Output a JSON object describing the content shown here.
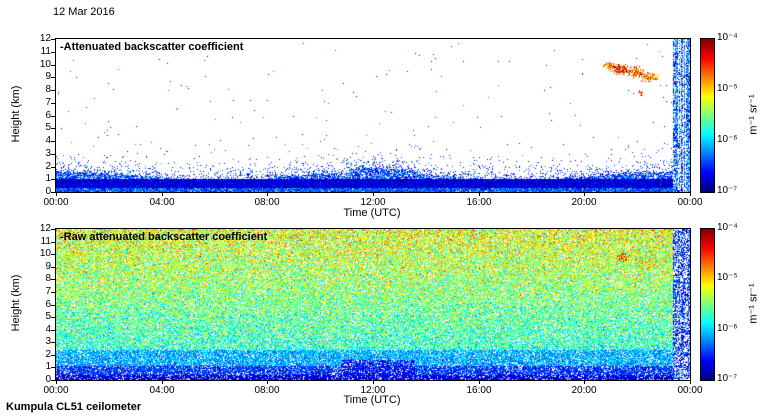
{
  "figure": {
    "date_label": "12 Mar 2016",
    "footer": "Kumpula CL51 ceilometer",
    "background": "#ffffff"
  },
  "colorbar": {
    "unit_label": "m⁻¹ sr⁻¹",
    "tick_labels": [
      "10⁻⁴",
      "10⁻⁵",
      "10⁻⁶",
      "10⁻⁷"
    ],
    "colormap": "jet",
    "scale": "log",
    "range_min": "1e-7",
    "range_max": "1e-4"
  },
  "chart_data": [
    {
      "type": "heatmap",
      "panel": "top",
      "title": "-Attenuated backscatter coefficient",
      "xlabel": "Time (UTC)",
      "ylabel": "Height (km)",
      "x_ticks": [
        "00:00",
        "04:00",
        "08:00",
        "12:00",
        "16:00",
        "20:00",
        "00:00"
      ],
      "x_range_hours": [
        0,
        24
      ],
      "y_ticks": [
        "12",
        "11",
        "10",
        "9",
        "8",
        "7",
        "6",
        "5",
        "4",
        "3",
        "2",
        "1",
        "0"
      ],
      "y_range_km": [
        0,
        12
      ],
      "colormap": "jet",
      "value_scale": {
        "type": "log",
        "min": "1e-7",
        "max": "1e-4",
        "unit": "m⁻¹ sr⁻¹"
      },
      "background": "white (signal below detection threshold)",
      "features": {
        "boundary_layer": {
          "height_km": [
            0,
            1.5
          ],
          "description": "dense low-level blue speckle with darker blue band near 0.3–1.0 km, slightly deeper around 12:00"
        },
        "clouds": [
          {
            "time_h": 20.95,
            "height_km": 9.9,
            "width_h": 0.25,
            "depth_km": 0.35,
            "level": 0.7
          },
          {
            "time_h": 21.35,
            "height_km": 9.6,
            "width_h": 0.45,
            "depth_km": 0.5,
            "level": 0.85
          },
          {
            "time_h": 21.95,
            "height_km": 9.4,
            "width_h": 0.35,
            "depth_km": 0.55,
            "level": 0.8
          },
          {
            "time_h": 22.45,
            "height_km": 9.0,
            "width_h": 0.4,
            "depth_km": 0.45,
            "level": 0.75
          },
          {
            "time_h": 22.15,
            "height_km": 7.75,
            "width_h": 0.12,
            "depth_km": 0.3,
            "level": 0.8
          }
        ],
        "edge_columns": {
          "time_h": [
            23.35,
            24
          ],
          "description": "full-depth noisy blue columns at end of day"
        }
      }
    },
    {
      "type": "heatmap",
      "panel": "bottom",
      "title": "-Raw attenuated backscatter coefficient",
      "xlabel": "Time (UTC)",
      "ylabel": "Height (km)",
      "x_ticks": [
        "00:00",
        "04:00",
        "08:00",
        "12:00",
        "16:00",
        "20:00",
        "00:00"
      ],
      "x_range_hours": [
        0,
        24
      ],
      "y_ticks": [
        "12",
        "11",
        "10",
        "9",
        "8",
        "7",
        "6",
        "5",
        "4",
        "3",
        "2",
        "1",
        "0"
      ],
      "y_range_km": [
        0,
        12
      ],
      "colormap": "jet",
      "value_scale": {
        "type": "log",
        "min": "1e-7",
        "max": "1e-4",
        "unit": "m⁻¹ sr⁻¹"
      },
      "background": "dense blue-green instrument noise across the full height range, greener/yellower aloft",
      "features": {
        "surface_layer": {
          "height_km": [
            0,
            1.1
          ],
          "description": "dark blue low-signal band near the surface, deeper around 12:00"
        },
        "clouds": [
          {
            "time_h": 21.45,
            "height_km": 9.7,
            "width_h": 0.35,
            "depth_km": 0.4,
            "level": 0.8
          },
          {
            "time_h": 22.3,
            "height_km": 9.3,
            "width_h": 0.5,
            "depth_km": 0.6,
            "level": 0.6
          }
        ],
        "edge_columns": {
          "time_h": [
            23.35,
            24
          ],
          "description": "whiter columns with blue speckle at end of day"
        }
      }
    }
  ]
}
